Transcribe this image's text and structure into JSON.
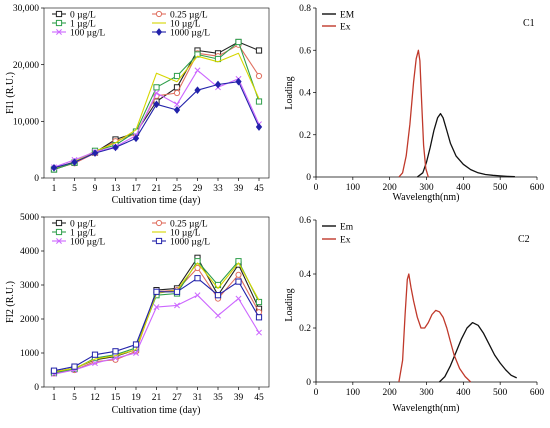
{
  "chart_data": [
    {
      "id": "A",
      "type": "line",
      "title": "",
      "xlabel": "Cultivation time (day)",
      "ylabel": "FI1 (R.U.)",
      "ylim": [
        0,
        30000
      ],
      "yticks": [
        "0",
        "10,000",
        "20,000",
        "30,000"
      ],
      "ytick_values": [
        0,
        10000,
        20000,
        30000
      ],
      "categories": [
        "1",
        "5",
        "9",
        "13",
        "17",
        "21",
        "25",
        "29",
        "33",
        "39",
        "45"
      ],
      "legend": "top-left, 2 columns",
      "series": [
        {
          "name": "0 µg/L",
          "color": "#222222",
          "marker": "square-open",
          "values": [
            1500,
            2700,
            4500,
            6800,
            8000,
            13500,
            16000,
            22500,
            22000,
            24000,
            22500
          ]
        },
        {
          "name": "0.25 µg/L",
          "color": "#e07060",
          "marker": "circle-open",
          "values": [
            1600,
            2600,
            4400,
            6500,
            7800,
            14500,
            15000,
            22000,
            21500,
            23500,
            18000
          ]
        },
        {
          "name": "1 µg/L",
          "color": "#2e9e4a",
          "marker": "square-open",
          "values": [
            1500,
            2700,
            4800,
            5800,
            8200,
            16000,
            18000,
            21800,
            21000,
            24000,
            13500
          ]
        },
        {
          "name": "10 µg/L",
          "color": "#d6d600",
          "marker": "none",
          "values": [
            1700,
            2900,
            4700,
            6200,
            8500,
            18500,
            17000,
            21500,
            20500,
            22000,
            14000
          ]
        },
        {
          "name": "100 µg/L",
          "color": "#cc66ff",
          "marker": "x",
          "values": [
            1900,
            3200,
            4600,
            5500,
            7500,
            15000,
            13000,
            19000,
            16000,
            17500,
            9500
          ]
        },
        {
          "name": "1000 µg/L",
          "color": "#2222aa",
          "marker": "diamond",
          "values": [
            1800,
            2800,
            4400,
            5400,
            7000,
            13000,
            12000,
            15500,
            16500,
            17000,
            9000
          ]
        }
      ]
    },
    {
      "id": "C1",
      "type": "line",
      "title": "C1",
      "xlabel": "Wavelength(nm)",
      "ylabel": "Loading",
      "xlim": [
        0,
        600
      ],
      "ylim": [
        0,
        0.8
      ],
      "xticks": [
        "0",
        "100",
        "200",
        "300",
        "400",
        "500",
        "600"
      ],
      "xtick_values": [
        0,
        100,
        200,
        300,
        400,
        500,
        600
      ],
      "yticks": [
        "0",
        "0.2",
        "0.4",
        "0.6",
        "0.8"
      ],
      "ytick_values": [
        0,
        0.2,
        0.4,
        0.6,
        0.8
      ],
      "legend": "top-center",
      "series": [
        {
          "name": "EM",
          "color": "#111111",
          "x": [
            275,
            290,
            300,
            310,
            320,
            330,
            338,
            345,
            355,
            365,
            380,
            400,
            420,
            440,
            460,
            480,
            500,
            520,
            540
          ],
          "y": [
            0,
            0.02,
            0.07,
            0.14,
            0.22,
            0.28,
            0.3,
            0.28,
            0.22,
            0.16,
            0.1,
            0.06,
            0.035,
            0.02,
            0.012,
            0.008,
            0.005,
            0.003,
            0.002
          ]
        },
        {
          "name": "Ex",
          "color": "#c0392b",
          "x": [
            225,
            235,
            245,
            255,
            265,
            272,
            278,
            282,
            287,
            292,
            298,
            305
          ],
          "y": [
            0,
            0.02,
            0.1,
            0.25,
            0.45,
            0.56,
            0.6,
            0.55,
            0.35,
            0.15,
            0.04,
            0
          ]
        }
      ]
    },
    {
      "id": "B",
      "type": "line",
      "title": "",
      "xlabel": "Cultivation time (day)",
      "ylabel": "FI2 (R.U.)",
      "ylim": [
        0,
        5000
      ],
      "yticks": [
        "0",
        "1000",
        "2000",
        "3000",
        "4000",
        "5000"
      ],
      "ytick_values": [
        0,
        1000,
        2000,
        3000,
        4000,
        5000
      ],
      "categories": [
        "1",
        "5",
        "12",
        "15",
        "19",
        "21",
        "27",
        "31",
        "35",
        "39",
        "45"
      ],
      "legend": "top-left, 2 columns",
      "series": [
        {
          "name": "0 µg/L",
          "color": "#222222",
          "marker": "square-open",
          "values": [
            450,
            550,
            800,
            900,
            1100,
            2850,
            2900,
            3800,
            2700,
            3600,
            2300
          ]
        },
        {
          "name": "0.25 µg/L",
          "color": "#e07060",
          "marker": "circle-open",
          "values": [
            400,
            500,
            750,
            800,
            1050,
            2800,
            2850,
            3500,
            2600,
            3300,
            2200
          ]
        },
        {
          "name": "1 µg/L",
          "color": "#2e9e4a",
          "marker": "square-open",
          "values": [
            420,
            530,
            850,
            950,
            1150,
            2700,
            2750,
            3700,
            3000,
            3700,
            2500
          ]
        },
        {
          "name": "10 µg/L",
          "color": "#d6d600",
          "marker": "none",
          "values": [
            450,
            550,
            820,
            920,
            1100,
            2750,
            2850,
            3650,
            2900,
            3650,
            2550
          ]
        },
        {
          "name": "100 µg/L",
          "color": "#cc66ff",
          "marker": "x",
          "values": [
            380,
            500,
            700,
            850,
            1000,
            2350,
            2400,
            2700,
            2100,
            2600,
            1600
          ]
        },
        {
          "name": "1000 µg/L",
          "color": "#2222aa",
          "marker": "square-open",
          "values": [
            480,
            600,
            950,
            1050,
            1250,
            2800,
            2800,
            3200,
            2700,
            3100,
            2050
          ]
        }
      ]
    },
    {
      "id": "C2",
      "type": "line",
      "title": "C2",
      "xlabel": "Wavelength(nm)",
      "ylabel": "Loading",
      "xlim": [
        0,
        600
      ],
      "ylim": [
        0,
        0.6
      ],
      "xticks": [
        "0",
        "100",
        "200",
        "300",
        "400",
        "500",
        "600"
      ],
      "xtick_values": [
        0,
        100,
        200,
        300,
        400,
        500,
        600
      ],
      "yticks": [
        "0",
        "0.2",
        "0.4",
        "0.6"
      ],
      "ytick_values": [
        0,
        0.2,
        0.4,
        0.6
      ],
      "legend": "top-left",
      "series": [
        {
          "name": "Em",
          "color": "#111111",
          "x": [
            335,
            350,
            365,
            380,
            395,
            410,
            425,
            440,
            455,
            470,
            485,
            500,
            515,
            530,
            545
          ],
          "y": [
            0.0,
            0.02,
            0.06,
            0.11,
            0.16,
            0.2,
            0.22,
            0.21,
            0.18,
            0.14,
            0.1,
            0.07,
            0.045,
            0.025,
            0.015
          ]
        },
        {
          "name": "Ex",
          "color": "#c0392b",
          "x": [
            225,
            235,
            242,
            248,
            252,
            258,
            265,
            275,
            285,
            295,
            305,
            315,
            325,
            335,
            345,
            355,
            365,
            375,
            390,
            405,
            420
          ],
          "y": [
            0.0,
            0.08,
            0.25,
            0.38,
            0.4,
            0.35,
            0.3,
            0.24,
            0.2,
            0.2,
            0.22,
            0.25,
            0.265,
            0.26,
            0.24,
            0.2,
            0.15,
            0.1,
            0.05,
            0.02,
            0.0
          ]
        }
      ]
    }
  ]
}
